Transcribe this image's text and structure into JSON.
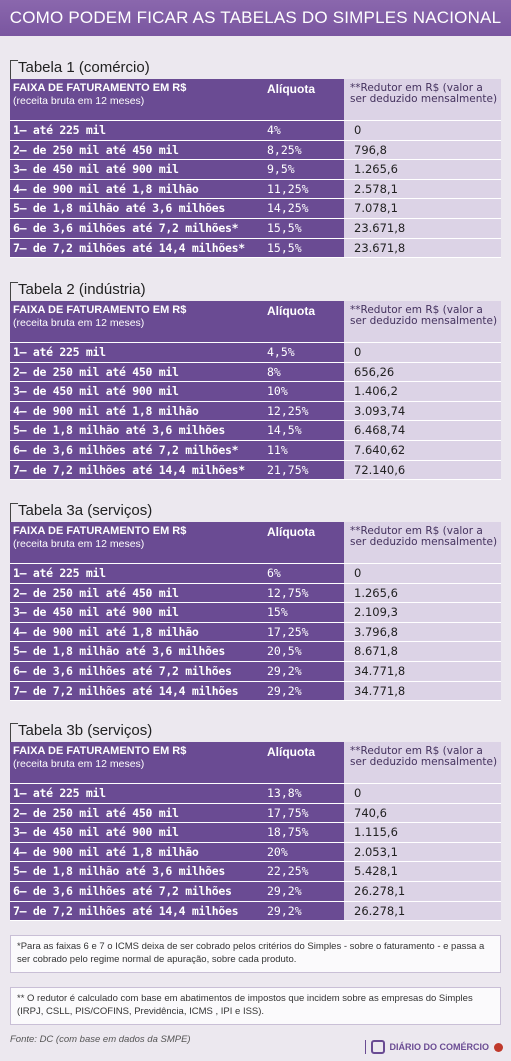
{
  "title": "COMO PODEM FICAR AS TABELAS DO SIMPLES NACIONAL",
  "header": {
    "faixa": "FAIXA DE FATURAMENTO EM R$",
    "faixa_sub": "(receita bruta em 12 meses)",
    "aliquota": "Alíquota",
    "redutor": "**Redutor em R$ (valor a ser deduzido mensalmente)"
  },
  "tables": [
    {
      "title": "Tabela 1 (comércio)",
      "rows": [
        {
          "faixa": "1— até 225 mil",
          "aliquota": "4%",
          "redutor": "0"
        },
        {
          "faixa": "2— de 250 mil até 450 mil",
          "aliquota": "8,25%",
          "redutor": "796,8"
        },
        {
          "faixa": "3— de 450 mil até 900 mil",
          "aliquota": "9,5%",
          "redutor": "1.265,6"
        },
        {
          "faixa": "4— de 900 mil até 1,8 milhão",
          "aliquota": "11,25%",
          "redutor": "2.578,1"
        },
        {
          "faixa": "5— de 1,8 milhão até 3,6 milhões",
          "aliquota": "14,25%",
          "redutor": "7.078,1"
        },
        {
          "faixa": "6— de 3,6 milhões até 7,2 milhões*",
          "aliquota": "15,5%",
          "redutor": "23.671,8"
        },
        {
          "faixa": "7— de 7,2 milhões até 14,4 milhões*",
          "aliquota": "15,5%",
          "redutor": "23.671,8"
        }
      ]
    },
    {
      "title": "Tabela 2 (indústria)",
      "rows": [
        {
          "faixa": "1— até 225 mil",
          "aliquota": "4,5%",
          "redutor": "0"
        },
        {
          "faixa": "2— de 250 mil até 450 mil",
          "aliquota": "8%",
          "redutor": "656,26"
        },
        {
          "faixa": "3— de 450 mil até 900 mil",
          "aliquota": "10%",
          "redutor": "1.406,2"
        },
        {
          "faixa": "4— de 900 mil até 1,8 milhão",
          "aliquota": "12,25%",
          "redutor": "3.093,74"
        },
        {
          "faixa": "5— de 1,8 milhão até 3,6 milhões",
          "aliquota": "14,5%",
          "redutor": "6.468,74"
        },
        {
          "faixa": "6— de 3,6 milhões até 7,2 milhões*",
          "aliquota": "11%",
          "redutor": "7.640,62"
        },
        {
          "faixa": "7— de 7,2 milhões até 14,4 milhões*",
          "aliquota": "21,75%",
          "redutor": "72.140,6"
        }
      ]
    },
    {
      "title": "Tabela 3a (serviços)",
      "rows": [
        {
          "faixa": "1— até 225 mil",
          "aliquota": "6%",
          "redutor": "0"
        },
        {
          "faixa": "2— de 250 mil até 450 mil",
          "aliquota": "12,75%",
          "redutor": "1.265,6"
        },
        {
          "faixa": "3— de 450 mil até 900 mil",
          "aliquota": "15%",
          "redutor": "2.109,3"
        },
        {
          "faixa": "4— de 900 mil até 1,8 milhão",
          "aliquota": "17,25%",
          "redutor": "3.796,8"
        },
        {
          "faixa": "5— de 1,8 milhão até 3,6 milhões",
          "aliquota": "20,5%",
          "redutor": "8.671,8"
        },
        {
          "faixa": "6— de 3,6 milhões até 7,2 milhões",
          "aliquota": "29,2%",
          "redutor": "34.771,8"
        },
        {
          "faixa": "7— de 7,2 milhões até 14,4 milhões",
          "aliquota": "29,2%",
          "redutor": "34.771,8"
        }
      ]
    },
    {
      "title": "Tabela 3b (serviços)",
      "rows": [
        {
          "faixa": "1— até 225 mil",
          "aliquota": "13,8%",
          "redutor": "0"
        },
        {
          "faixa": "2— de 250 mil até 450 mil",
          "aliquota": "17,75%",
          "redutor": "740,6"
        },
        {
          "faixa": "3— de 450 mil até 900 mil",
          "aliquota": "18,75%",
          "redutor": "1.115,6"
        },
        {
          "faixa": "4— de 900 mil até 1,8 milhão",
          "aliquota": "20%",
          "redutor": "2.053,1"
        },
        {
          "faixa": "5— de 1,8 milhão até 3,6 milhões",
          "aliquota": "22,25%",
          "redutor": "5.428,1"
        },
        {
          "faixa": "6— de 3,6 milhões até 7,2 milhões",
          "aliquota": "29,2%",
          "redutor": "26.278,1"
        },
        {
          "faixa": "7— de 7,2 milhões até 14,4 milhões",
          "aliquota": "29,2%",
          "redutor": "26.278,1"
        }
      ]
    }
  ],
  "note1": "*Para as faixas 6 e 7 o ICMS deixa de ser cobrado pelos critérios do Simples - sobre o faturamento - e passa a ser cobrado pelo regime normal de apuração, sobre cada produto.",
  "note2": "** O redutor é calculado com base em abatimentos de impostos que incidem sobre as empresas do Simples (IRPJ, CSLL, PIS/COFINS, Previdência, ICMS , IPI e ISS).",
  "fonte": "Fonte: DC (com base em dados da SMPE)",
  "brand": "DIÁRIO DO COMÉRCIO",
  "brand_logo_icon": "brand-logo-icon",
  "colors": {
    "purple": "#6a4b93",
    "lavender": "#dcd3e6",
    "topbar": "#7a56a0"
  }
}
